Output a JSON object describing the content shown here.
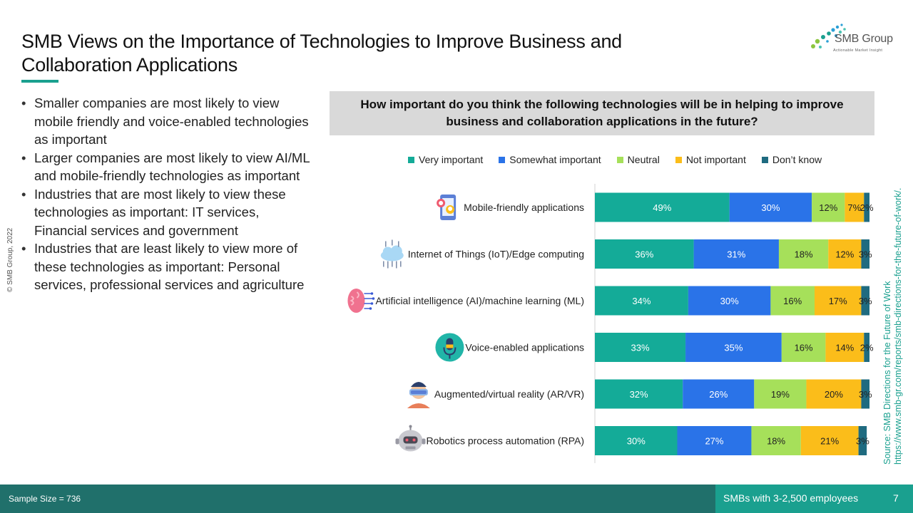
{
  "title": "SMB Views on the Importance of Technologies to Improve Business and Collaboration Applications",
  "logo": {
    "name": "SMB Group",
    "tagline": "Actionable Market Insight"
  },
  "bullets": [
    "Smaller companies are most likely to view mobile friendly and voice-enabled technologies as important",
    "Larger companies are most likely to view AI/ML and mobile-friendly technologies as important",
    "Industries that are most likely to view these technologies as important: IT services, Financial services and government",
    "Industries that are least likely to view more of these technologies as important: Personal services, professional services and agriculture"
  ],
  "copyright": "© SMB Group, 2022",
  "source": {
    "line1": "Source: SMB Directions for the Future of Work",
    "line2": "https://www.smb-gr.com/reports/smb-directions-for-the-future-of-work/."
  },
  "footer": {
    "sample_size": "Sample Size = 736",
    "segment": "SMBs with 3-2,500 employees",
    "page_number": "7"
  },
  "colors": {
    "accent": "#1aa08f",
    "footer_bg": "#20706b"
  },
  "chart_data": {
    "type": "bar",
    "orientation": "horizontal",
    "stacked": true,
    "title": "How important do you think the following technologies will be in helping to improve business and collaboration applications in the future?",
    "legend_position": "top",
    "categories": [
      "Mobile-friendly applications",
      "Internet of Things (IoT)/Edge computing",
      "Artificial intelligence (AI)/machine learning (ML)",
      "Voice-enabled applications",
      "Augmented/virtual reality (AR/VR)",
      "Robotics process automation (RPA)"
    ],
    "category_icons": [
      "smartphone-icon",
      "cloud-network-icon",
      "brain-circuit-icon",
      "microphone-icon",
      "vr-headset-icon",
      "robot-icon"
    ],
    "series": [
      {
        "name": "Very important",
        "color": "#14ab98",
        "values": [
          49,
          36,
          34,
          33,
          32,
          30
        ]
      },
      {
        "name": "Somewhat important",
        "color": "#2a73e8",
        "values": [
          30,
          31,
          30,
          35,
          26,
          27
        ]
      },
      {
        "name": "Neutral",
        "color": "#a6e05a",
        "values": [
          12,
          18,
          16,
          16,
          19,
          18
        ]
      },
      {
        "name": "Not important",
        "color": "#fbbd1a",
        "values": [
          7,
          12,
          17,
          14,
          20,
          21
        ]
      },
      {
        "name": "Don’t know",
        "color": "#1f6b80",
        "values": [
          2,
          3,
          3,
          2,
          3,
          3
        ]
      }
    ],
    "value_suffix": "%",
    "xlim": [
      0,
      100
    ],
    "grid": false
  }
}
